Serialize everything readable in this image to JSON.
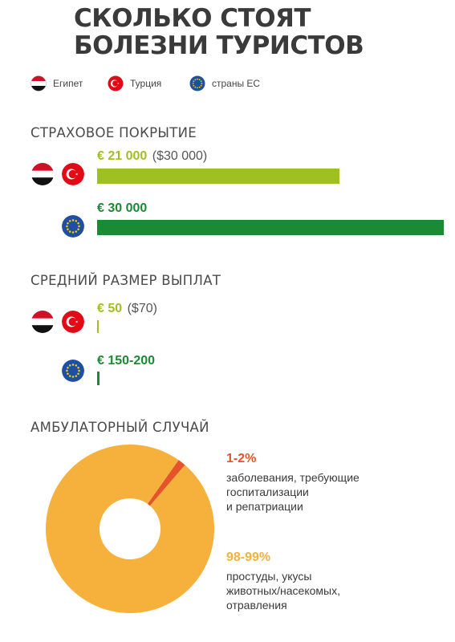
{
  "title": "СКОЛЬКО СТОЯТ БОЛЕЗНИ ТУРИСТОВ",
  "legend": [
    {
      "label": "Египет",
      "icon": "egypt-flag-icon"
    },
    {
      "label": "Турция",
      "icon": "turkey-flag-icon"
    },
    {
      "label": "страны ЕС",
      "icon": "eu-flag-icon"
    }
  ],
  "colors": {
    "light_green": "#9ec020",
    "dark_green": "#1b8a34",
    "orange_yellow": "#f5b13c",
    "red_orange": "#e5532a"
  },
  "sections": {
    "coverage": {
      "title": "СТРАХОВОЕ ПОКРЫТИЕ",
      "egypt_turkey_value": "€ 21 000",
      "egypt_turkey_usd": "($30 000)",
      "eu_value": "€ 30 000"
    },
    "payout": {
      "title": "СРЕДНИЙ РАЗМЕР ВЫПЛАТ",
      "egypt_turkey_value": "€ 50",
      "egypt_turkey_usd": "($70)",
      "eu_value": "€ 150-200"
    },
    "ambulatory": {
      "title": "АМБУЛАТОРНЫЙ СЛУЧАЙ",
      "small_pct": "1-2%",
      "small_desc": [
        "заболевания, требующие",
        "госпитализации",
        "и репатриации"
      ],
      "large_pct": "98-99%",
      "large_desc": [
        "простуды, укусы",
        "животных/насекомых,",
        "отравления"
      ]
    }
  },
  "chart_data": [
    {
      "type": "bar",
      "title": "СТРАХОВОЕ ПОКРЫТИЕ",
      "categories": [
        "Египет, Турция",
        "страны ЕС"
      ],
      "values": [
        21000,
        30000
      ],
      "labels": [
        "€ 21 000 ($30 000)",
        "€ 30 000"
      ],
      "colors": [
        "#9ec020",
        "#1b8a34"
      ]
    },
    {
      "type": "bar",
      "title": "СРЕДНИЙ РАЗМЕР ВЫПЛАТ",
      "categories": [
        "Египет, Турция",
        "страны ЕС"
      ],
      "values": [
        50,
        175
      ],
      "labels": [
        "€ 50 ($70)",
        "€ 150-200"
      ],
      "colors": [
        "#9ec020",
        "#1b8a34"
      ]
    },
    {
      "type": "pie",
      "title": "АМБУЛАТОРНЫЙ СЛУЧАЙ",
      "categories": [
        "1-2%",
        "98-99%"
      ],
      "values": [
        1.5,
        98.5
      ],
      "colors": [
        "#e5532a",
        "#f5b13c"
      ]
    }
  ]
}
